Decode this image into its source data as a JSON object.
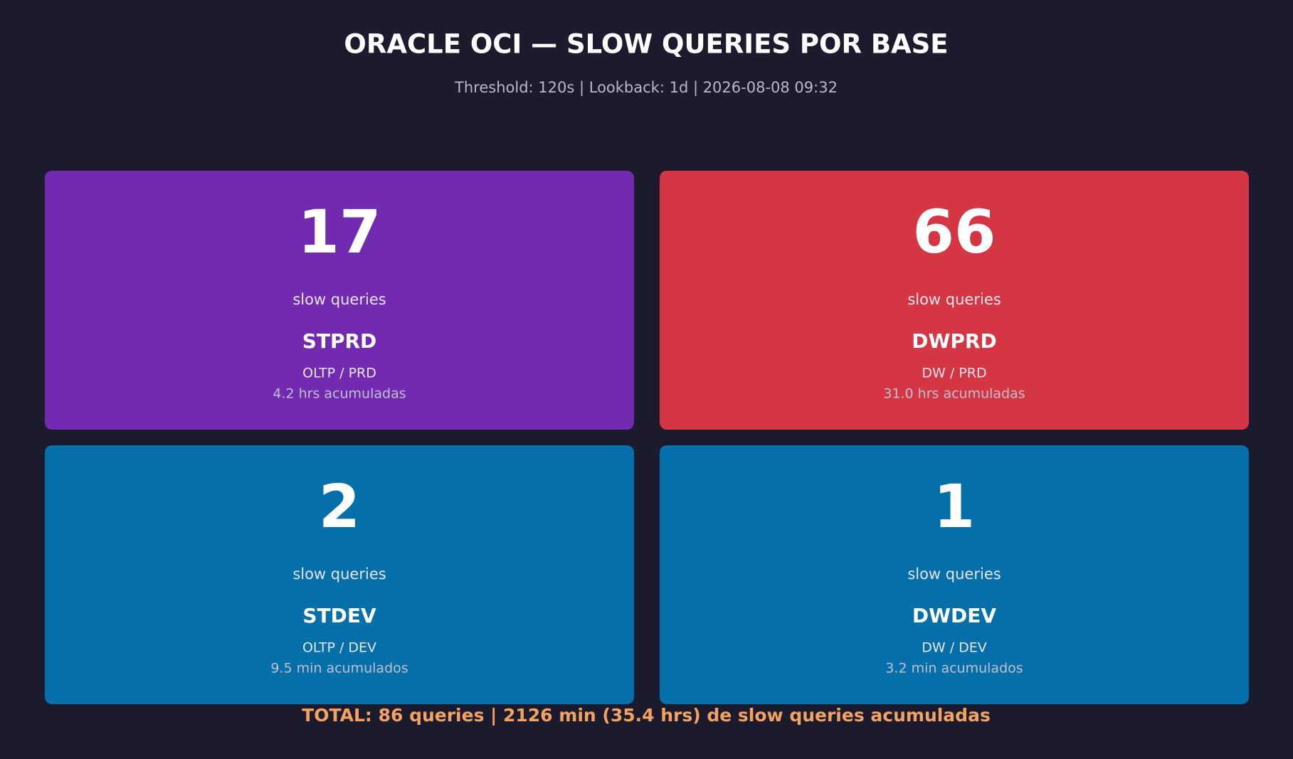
{
  "header": {
    "title": "ORACLE OCI — SLOW QUERIES POR BASE",
    "subtitle": "Threshold: 120s | Lookback: 1d | 2026-08-08 09:32"
  },
  "cards": [
    {
      "count": 17,
      "count_label": "slow queries",
      "name": "STPRD",
      "kind": "OLTP / PRD",
      "accumulated": "4.2 hrs acumuladas",
      "color": "#722ab1"
    },
    {
      "count": 66,
      "count_label": "slow queries",
      "name": "DWPRD",
      "kind": "DW / PRD",
      "accumulated": "31.0 hrs acumuladas",
      "color": "#d43644"
    },
    {
      "count": 2,
      "count_label": "slow queries",
      "name": "STDEV",
      "kind": "OLTP / DEV",
      "accumulated": "9.5 min acumulados",
      "color": "#046fa9"
    },
    {
      "count": 1,
      "count_label": "slow queries",
      "name": "DWDEV",
      "kind": "DW / DEV",
      "accumulated": "3.2 min acumulados",
      "color": "#046fa9"
    }
  ],
  "footer": {
    "total": "TOTAL: 86 queries | 2126 min (35.4 hrs) de slow queries acumuladas"
  }
}
